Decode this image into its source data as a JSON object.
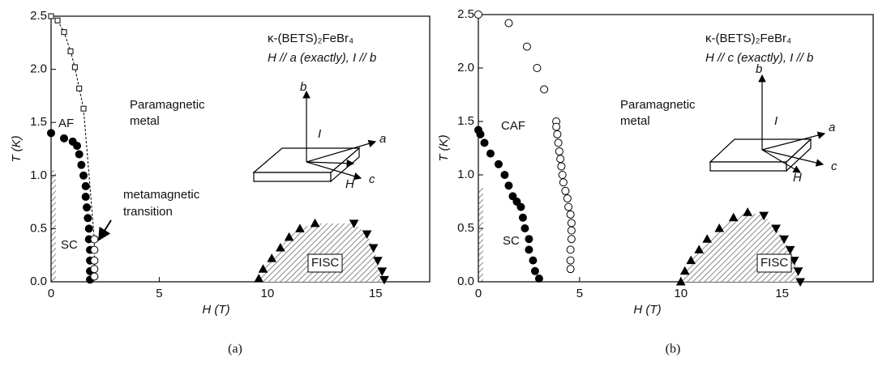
{
  "chart_data": [
    {
      "type": "scatter",
      "caption": "(a)",
      "xlabel": "H (T)",
      "ylabel": "T (K)",
      "xlim": [
        0,
        17.5
      ],
      "ylim": [
        0,
        2.5
      ],
      "xticks": [
        0,
        5,
        10,
        15
      ],
      "yticks": [
        {
          "value": 0,
          "label": "0.0"
        },
        {
          "value": 0.5,
          "label": "0.5"
        },
        {
          "value": 1,
          "label": "1.0"
        },
        {
          "value": 1.5,
          "label": "1.5"
        },
        {
          "value": 2,
          "label": "2.0"
        },
        {
          "value": 2.5,
          "label": "2.5"
        }
      ],
      "annotations": [
        "AF",
        "Paramagnetic",
        "metal",
        "SC",
        "metamagnetic",
        "transition",
        "FISC",
        "κ-(BETS)₂FeBr₄",
        "H // a (exactly), I // b"
      ],
      "inset_labels": [
        "b",
        "I",
        "a",
        "H",
        "c"
      ],
      "series": [
        {
          "marker": "square",
          "filled": false,
          "line": true,
          "color": "#000000",
          "x": [
            0,
            0.3,
            0.6,
            0.9,
            1.1,
            1.3,
            1.5
          ],
          "values": [
            2.5,
            2.46,
            2.35,
            2.17,
            2.02,
            1.82,
            1.63
          ]
        },
        {
          "marker": "circle",
          "filled": true,
          "line": false,
          "color": "#000000",
          "x": [
            0,
            0.6,
            1.0,
            1.2,
            1.3,
            1.4,
            1.5,
            1.6,
            1.6,
            1.65,
            1.7,
            1.75,
            1.75,
            1.8,
            1.8,
            1.8,
            1.8
          ],
          "values": [
            1.4,
            1.35,
            1.32,
            1.28,
            1.2,
            1.1,
            1.0,
            0.9,
            0.8,
            0.7,
            0.6,
            0.5,
            0.4,
            0.3,
            0.2,
            0.1,
            0.02
          ]
        },
        {
          "marker": "circle",
          "filled": false,
          "line": true,
          "color": "#000000",
          "x": [
            2.0,
            2.0,
            2.0,
            2.0,
            2.0
          ],
          "values": [
            0.4,
            0.3,
            0.2,
            0.12,
            0.05
          ]
        },
        {
          "marker": "triangle-up",
          "filled": true,
          "line": false,
          "color": "#000000",
          "x": [
            9.6,
            9.8,
            10.2,
            10.6,
            11.0,
            11.5,
            12.2
          ],
          "values": [
            0.03,
            0.12,
            0.22,
            0.32,
            0.42,
            0.5,
            0.55
          ]
        },
        {
          "marker": "triangle-down",
          "filled": true,
          "line": false,
          "color": "#000000",
          "x": [
            14.0,
            14.6,
            14.9,
            15.1,
            15.3,
            15.4
          ],
          "values": [
            0.55,
            0.45,
            0.32,
            0.2,
            0.1,
            0.02
          ]
        }
      ]
    },
    {
      "type": "scatter",
      "caption": "(b)",
      "xlabel": "H (T)",
      "ylabel": "T (K)",
      "xlim": [
        0,
        19.5
      ],
      "ylim": [
        0,
        2.5
      ],
      "xticks": [
        0,
        5,
        10,
        15
      ],
      "yticks": [
        {
          "value": 0,
          "label": "0.0"
        },
        {
          "value": 0.5,
          "label": "0.5"
        },
        {
          "value": 1,
          "label": "1.0"
        },
        {
          "value": 1.5,
          "label": "1.5"
        },
        {
          "value": 2,
          "label": "2.0"
        },
        {
          "value": 2.5,
          "label": "2.5"
        }
      ],
      "annotations": [
        "CAF",
        "Paramagnetic",
        "metal",
        "SC",
        "FISC",
        "κ-(BETS)₂FeBr₄",
        "H // c (exactly), I // b"
      ],
      "inset_labels": [
        "b",
        "I",
        "a",
        "H",
        "c"
      ],
      "series": [
        {
          "marker": "circle",
          "filled": false,
          "line": false,
          "color": "#000000",
          "x": [
            0,
            1.5,
            2.4,
            2.9,
            3.25,
            3.85,
            3.85,
            3.9,
            3.95,
            4.0,
            4.05,
            4.1,
            4.15,
            4.2,
            4.3,
            4.4,
            4.45,
            4.55,
            4.6,
            4.6,
            4.6,
            4.55,
            4.55,
            4.55
          ],
          "values": [
            2.5,
            2.42,
            2.2,
            2.0,
            1.8,
            1.5,
            1.45,
            1.38,
            1.3,
            1.22,
            1.15,
            1.08,
            1.0,
            0.93,
            0.85,
            0.78,
            0.7,
            0.63,
            0.55,
            0.48,
            0.4,
            0.3,
            0.2,
            0.12
          ]
        },
        {
          "marker": "circle",
          "filled": true,
          "line": false,
          "color": "#000000",
          "x": [
            0,
            0.1,
            0.3,
            0.6,
            1.0,
            1.3,
            1.5,
            1.7,
            1.9,
            2.1,
            2.2,
            2.3,
            2.5,
            2.5,
            2.7,
            2.8,
            3.0
          ],
          "values": [
            1.42,
            1.38,
            1.3,
            1.2,
            1.1,
            1.0,
            0.9,
            0.8,
            0.75,
            0.7,
            0.6,
            0.5,
            0.4,
            0.3,
            0.2,
            0.1,
            0.03
          ]
        },
        {
          "marker": "triangle-up",
          "filled": true,
          "line": false,
          "color": "#000000",
          "x": [
            10,
            10.2,
            10.5,
            10.9,
            11.3,
            11.9,
            12.6,
            13.3
          ],
          "values": [
            0,
            0.1,
            0.2,
            0.3,
            0.4,
            0.5,
            0.6,
            0.65
          ]
        },
        {
          "marker": "triangle-down",
          "filled": true,
          "line": false,
          "color": "#000000",
          "x": [
            14.1,
            14.7,
            15.1,
            15.4,
            15.6,
            15.8,
            15.9
          ],
          "values": [
            0.62,
            0.5,
            0.4,
            0.3,
            0.2,
            0.1,
            0.0
          ]
        }
      ]
    }
  ]
}
